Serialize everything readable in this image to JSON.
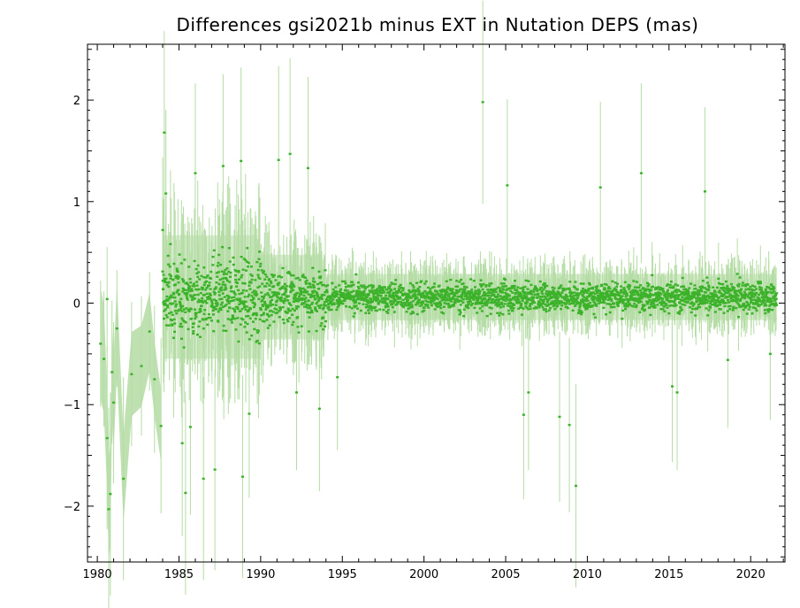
{
  "chart_data": {
    "type": "scatter",
    "title": "Differences gsi2021b minus EXT in Nutation DEPS (mas)",
    "xlabel": "",
    "ylabel": "",
    "xlim": [
      1979.4,
      2022.1
    ],
    "ylim": [
      -2.55,
      2.55
    ],
    "x_ticks": [
      "1980",
      "1985",
      "1990",
      "1995",
      "2000",
      "2005",
      "2010",
      "2015",
      "2020"
    ],
    "y_ticks": [
      "−2",
      "−1",
      "0",
      "1",
      "2"
    ],
    "grid": false,
    "legend": "none",
    "colors": {
      "points": "#3cb22a",
      "error_bars": "#b4dca4",
      "axes": "#000000"
    },
    "series": [
      {
        "early_points": [
          {
            "x": 1980.2,
            "y": -0.4
          },
          {
            "x": 1980.4,
            "y": -0.55
          },
          {
            "x": 1980.6,
            "y": -1.33
          },
          {
            "x": 1980.7,
            "y": -2.03
          },
          {
            "x": 1980.8,
            "y": -1.88
          },
          {
            "x": 1980.9,
            "y": -0.68
          },
          {
            "x": 1981.0,
            "y": -0.98
          },
          {
            "x": 1981.2,
            "y": -0.25
          },
          {
            "x": 1981.6,
            "y": -1.73
          },
          {
            "x": 1982.1,
            "y": -0.7
          },
          {
            "x": 1982.7,
            "y": -0.62
          },
          {
            "x": 1983.2,
            "y": -0.28
          },
          {
            "x": 1983.5,
            "y": -0.75
          },
          {
            "x": 1983.9,
            "y": -1.21
          },
          {
            "x": 1980.6,
            "y": 0.04
          }
        ],
        "outliers": [
          {
            "x": 1984.1,
            "y": 1.68
          },
          {
            "x": 1984.0,
            "y": 0.72
          },
          {
            "x": 1984.2,
            "y": 1.08
          },
          {
            "x": 1985.2,
            "y": -1.38
          },
          {
            "x": 1985.4,
            "y": -1.87
          },
          {
            "x": 1985.7,
            "y": -1.22
          },
          {
            "x": 1986.0,
            "y": 1.28
          },
          {
            "x": 1986.5,
            "y": -1.73
          },
          {
            "x": 1987.2,
            "y": -1.64
          },
          {
            "x": 1987.7,
            "y": 1.35
          },
          {
            "x": 1988.8,
            "y": 1.4
          },
          {
            "x": 1988.9,
            "y": -1.71
          },
          {
            "x": 1989.3,
            "y": -1.09
          },
          {
            "x": 1991.1,
            "y": 1.41
          },
          {
            "x": 1991.8,
            "y": 1.47
          },
          {
            "x": 1992.2,
            "y": -0.88
          },
          {
            "x": 1992.9,
            "y": 1.33
          },
          {
            "x": 1993.6,
            "y": -1.04
          },
          {
            "x": 1994.7,
            "y": -0.73
          },
          {
            "x": 2003.6,
            "y": 1.98
          },
          {
            "x": 2005.1,
            "y": 1.16
          },
          {
            "x": 2006.1,
            "y": -1.1
          },
          {
            "x": 2006.4,
            "y": -0.88
          },
          {
            "x": 2008.3,
            "y": -1.12
          },
          {
            "x": 2008.9,
            "y": -1.2
          },
          {
            "x": 2009.3,
            "y": -1.8
          },
          {
            "x": 2010.8,
            "y": 1.14
          },
          {
            "x": 2013.3,
            "y": 1.28
          },
          {
            "x": 2015.2,
            "y": -0.82
          },
          {
            "x": 2015.5,
            "y": -0.88
          },
          {
            "x": 2017.2,
            "y": 1.1
          },
          {
            "x": 2018.6,
            "y": -0.56
          },
          {
            "x": 2021.2,
            "y": -0.5
          }
        ],
        "bulk_profile": [
          {
            "from": 1984.0,
            "to": 1990.0,
            "spread": 0.32
          },
          {
            "from": 1990.0,
            "to": 1994.0,
            "spread": 0.22
          },
          {
            "from": 1994.0,
            "to": 2022.0,
            "spread": 0.12
          }
        ]
      }
    ]
  }
}
